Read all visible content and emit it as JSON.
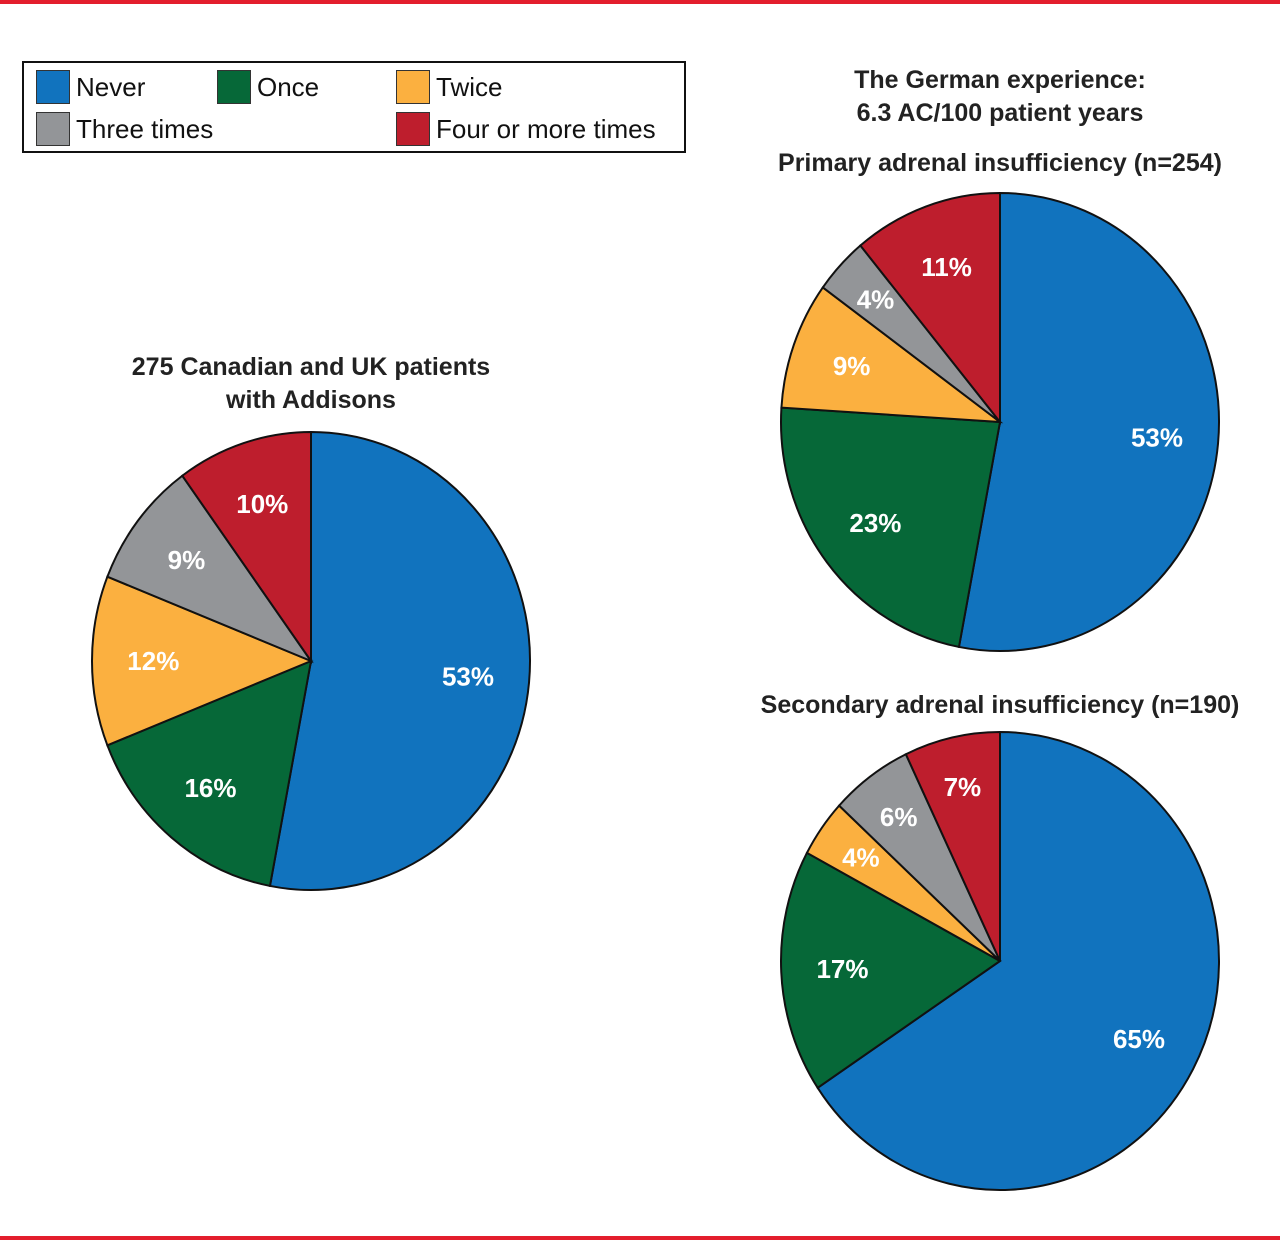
{
  "colors": {
    "Never": "#1173be",
    "Once": "#066838",
    "Twice": "#fbb040",
    "Three times": "#939598",
    "Four or more times": "#be1e2d",
    "rule": "#e31e2d"
  },
  "legend": [
    "Never",
    "Once",
    "Twice",
    "Three times",
    "Four or more times"
  ],
  "header": {
    "line1": "The German experience:",
    "line2": "6.3 AC/100 patient years"
  },
  "chart_data": [
    {
      "type": "pie",
      "title": "275 Canadian and UK patients",
      "subtitle": "with Addisons",
      "categories": [
        "Never",
        "Once",
        "Twice",
        "Three times",
        "Four or more times"
      ],
      "values": [
        53,
        16,
        12,
        9,
        10
      ],
      "labels": [
        "53%",
        "16%",
        "12%",
        "9%",
        "10%"
      ]
    },
    {
      "type": "pie",
      "title": "Primary adrenal insufficiency (n=254)",
      "categories": [
        "Never",
        "Once",
        "Twice",
        "Three times",
        "Four or more times"
      ],
      "values": [
        53,
        23,
        9,
        4,
        11
      ],
      "labels": [
        "53%",
        "23%",
        "9%",
        "4%",
        "11%"
      ]
    },
    {
      "type": "pie",
      "title": "Secondary adrenal insufficiency (n=190)",
      "categories": [
        "Never",
        "Once",
        "Twice",
        "Three times",
        "Four or more times"
      ],
      "values": [
        65,
        17,
        4,
        6,
        7
      ],
      "labels": [
        "65%",
        "17%",
        "4%",
        "6%",
        "7%"
      ]
    }
  ]
}
